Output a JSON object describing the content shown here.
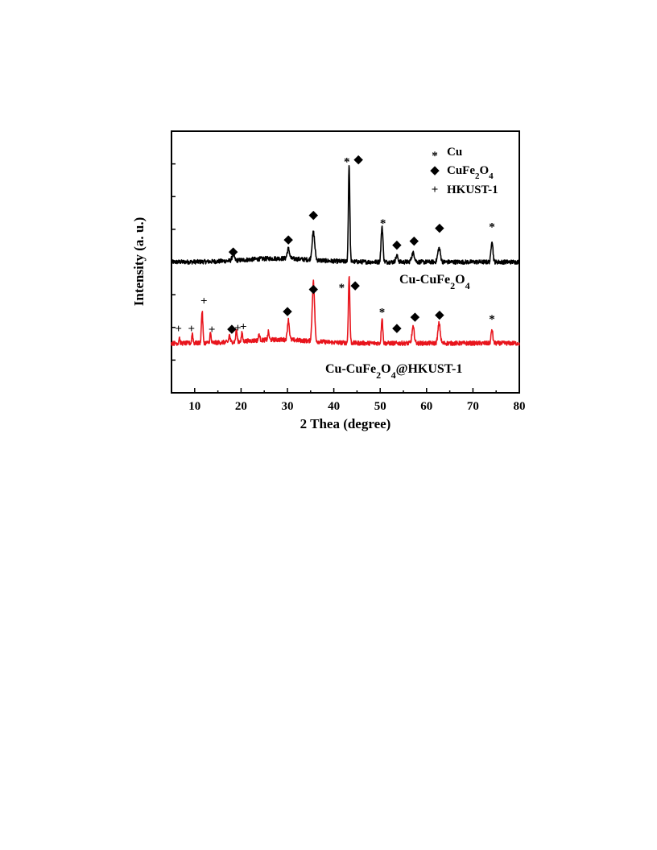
{
  "chart_data": {
    "type": "line",
    "xlabel": "2 Thea (degree)",
    "ylabel": "Intensity (a. u.)",
    "xlim": [
      5,
      80
    ],
    "x_ticks": [
      10,
      20,
      30,
      40,
      50,
      60,
      70,
      80
    ],
    "y_ticks_labeled": false,
    "grid": false,
    "legend_position": "top-right",
    "legend": [
      {
        "symbol": "*",
        "label": "Cu"
      },
      {
        "symbol": "◆",
        "label": "CuFe2O4"
      },
      {
        "symbol": "+",
        "label": "HKUST-1"
      }
    ],
    "series": [
      {
        "name": "Cu-CuFe2O4",
        "color": "#000000",
        "baseline": 0,
        "peaks": [
          {
            "x": 18.3,
            "height": 0.3,
            "width": 0.35
          },
          {
            "x": 30.2,
            "height": 0.5,
            "width": 0.35
          },
          {
            "x": 35.6,
            "height": 1.4,
            "width": 0.4
          },
          {
            "x": 43.3,
            "height": 4.9,
            "width": 0.22
          },
          {
            "x": 50.4,
            "height": 1.8,
            "width": 0.28
          },
          {
            "x": 53.6,
            "height": 0.3,
            "width": 0.35
          },
          {
            "x": 57.1,
            "height": 0.45,
            "width": 0.45
          },
          {
            "x": 62.7,
            "height": 0.7,
            "width": 0.4
          },
          {
            "x": 74.1,
            "height": 1.1,
            "width": 0.28
          }
        ],
        "markers": [
          {
            "x": 18.3,
            "y": 0.55,
            "symbol": "◆"
          },
          {
            "x": 30.2,
            "y": 1.15,
            "symbol": "◆"
          },
          {
            "x": 35.6,
            "y": 2.4,
            "symbol": "◆"
          },
          {
            "x": 42.8,
            "y": 5.2,
            "symbol": "*"
          },
          {
            "x": 45.3,
            "y": 5.2,
            "symbol": "◆"
          },
          {
            "x": 50.6,
            "y": 2.1,
            "symbol": "*"
          },
          {
            "x": 53.6,
            "y": 0.9,
            "symbol": "◆"
          },
          {
            "x": 57.3,
            "y": 1.1,
            "symbol": "◆"
          },
          {
            "x": 62.8,
            "y": 1.75,
            "symbol": "◆"
          },
          {
            "x": 74.1,
            "y": 1.9,
            "symbol": "*"
          }
        ]
      },
      {
        "name": "Cu-CuFe2O4@HKUST-1",
        "color": "#e8141c",
        "baseline": -4.1,
        "peaks": [
          {
            "x": 6.7,
            "height": 0.3,
            "width": 0.15
          },
          {
            "x": 9.5,
            "height": 0.5,
            "width": 0.18
          },
          {
            "x": 11.6,
            "height": 1.6,
            "width": 0.22
          },
          {
            "x": 13.4,
            "height": 0.5,
            "width": 0.18
          },
          {
            "x": 17.5,
            "height": 0.35,
            "width": 0.2
          },
          {
            "x": 19.0,
            "height": 0.6,
            "width": 0.2
          },
          {
            "x": 20.2,
            "height": 0.4,
            "width": 0.2
          },
          {
            "x": 23.9,
            "height": 0.3,
            "width": 0.2
          },
          {
            "x": 25.9,
            "height": 0.4,
            "width": 0.2
          },
          {
            "x": 30.2,
            "height": 1.0,
            "width": 0.3
          },
          {
            "x": 35.6,
            "height": 3.0,
            "width": 0.35
          },
          {
            "x": 43.3,
            "height": 3.4,
            "width": 0.22
          },
          {
            "x": 50.4,
            "height": 1.3,
            "width": 0.22
          },
          {
            "x": 57.1,
            "height": 0.8,
            "width": 0.35
          },
          {
            "x": 62.7,
            "height": 1.0,
            "width": 0.35
          },
          {
            "x": 74.1,
            "height": 0.7,
            "width": 0.25
          }
        ],
        "markers": [
          {
            "x": 6.5,
            "y": -3.35,
            "symbol": "+"
          },
          {
            "x": 9.3,
            "y": -3.35,
            "symbol": "+"
          },
          {
            "x": 12.0,
            "y": -1.95,
            "symbol": "+"
          },
          {
            "x": 13.7,
            "y": -3.4,
            "symbol": "+"
          },
          {
            "x": 18.0,
            "y": -3.35,
            "symbol": "◆"
          },
          {
            "x": 19.3,
            "y": -3.3,
            "symbol": "+"
          },
          {
            "x": 20.5,
            "y": -3.25,
            "symbol": "+"
          },
          {
            "x": 30.0,
            "y": -2.45,
            "symbol": "◆"
          },
          {
            "x": 35.6,
            "y": -1.35,
            "symbol": "◆"
          },
          {
            "x": 41.7,
            "y": -1.15,
            "symbol": "*"
          },
          {
            "x": 44.6,
            "y": -1.15,
            "symbol": "◆"
          },
          {
            "x": 50.4,
            "y": -2.4,
            "symbol": "*"
          },
          {
            "x": 53.6,
            "y": -3.3,
            "symbol": "◆"
          },
          {
            "x": 57.5,
            "y": -2.75,
            "symbol": "◆"
          },
          {
            "x": 62.8,
            "y": -2.65,
            "symbol": "◆"
          },
          {
            "x": 74.1,
            "y": -2.75,
            "symbol": "*"
          }
        ]
      }
    ]
  },
  "series_labels": {
    "top": {
      "prefix": "Cu-CuFe",
      "sub1": "2",
      "mid": "O",
      "sub2": "4"
    },
    "bottom": {
      "prefix": "Cu-CuFe",
      "sub1": "2",
      "mid": "O",
      "sub2": "4",
      "suffix": "@HKUST-1"
    }
  },
  "legend_formula": {
    "prefix": "CuFe",
    "sub1": "2",
    "mid": "O",
    "sub2": "4"
  }
}
